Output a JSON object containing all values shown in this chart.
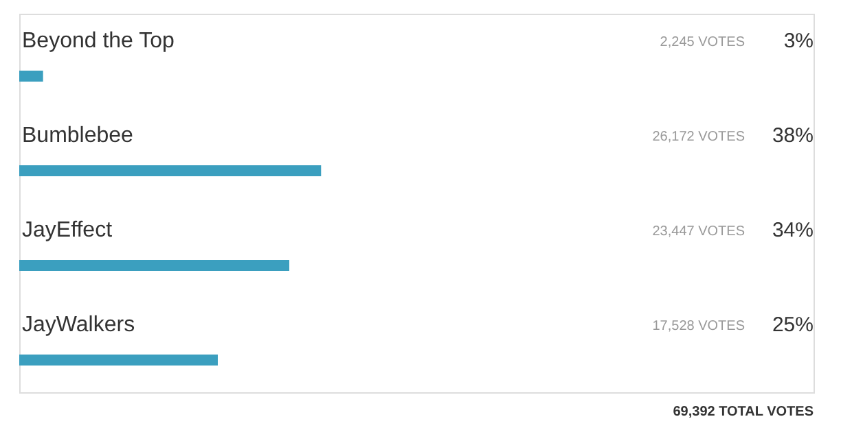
{
  "chart_data": {
    "type": "bar",
    "orientation": "horizontal",
    "categories": [
      "Beyond the Top",
      "Bumblebee",
      "JayEffect",
      "JayWalkers"
    ],
    "values": [
      3,
      38,
      34,
      25
    ],
    "color": "#3b9fbf",
    "value_labels": [
      "3%",
      "38%",
      "34%",
      "25%"
    ],
    "xlim": [
      0,
      100
    ],
    "tick_labels": false,
    "annotations": [
      "2,245 VOTES",
      "26,172 VOTES",
      "23,447 VOTES",
      "17,528 VOTES",
      "69,392 TOTAL VOTES"
    ]
  }
}
